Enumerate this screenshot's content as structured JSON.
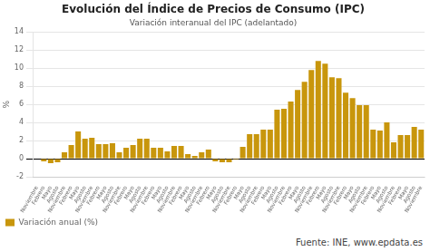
{
  "chart_data": {
    "type": "bar",
    "title": "Evolución del Índice de Precios de Consumo (IPC)",
    "subtitle": "Variación interanual del IPC (adelantado)",
    "y_label": "%",
    "annotations": [
      "Fuente: INE, www.epdata.es"
    ],
    "categories": [
      "Noviembre",
      "Febrero",
      "Mayo",
      "Agosto",
      "Noviembre",
      "Febrero",
      "Mayo",
      "Agosto",
      "Noviembre",
      "Febrero",
      "Mayo",
      "Agosto",
      "Noviembre",
      "Febrero",
      "Mayo",
      "Agosto",
      "Noviembre",
      "Febrero",
      "Mayo",
      "Agosto",
      "Noviembre",
      "Febrero",
      "Mayo",
      "Agosto",
      "Noviembre",
      "Febrero",
      "Mayo",
      "Agosto",
      "Noviembre",
      "Febrero",
      "Mayo",
      "Agosto",
      "Noviembre",
      "Febrero",
      "Mayo",
      "Agosto",
      "Noviembre",
      "Febrero",
      "Mayo",
      "Agosto",
      "Noviembre",
      "Febrero",
      "Mayo",
      "Agosto",
      "Noviembre",
      "Febrero",
      "Mayo",
      "Agosto",
      "Noviembre",
      "Febrero",
      "Mayo",
      "Agosto",
      "Noviembre",
      "Febrero",
      "Mayo",
      "Agosto",
      "Noviembre"
    ],
    "series": [
      {
        "name": "Variación anual (%)",
        "color": "#C8960C",
        "values": [
          0.0,
          -0.3,
          -0.5,
          -0.4,
          0.7,
          1.5,
          3.0,
          2.2,
          2.3,
          1.6,
          1.6,
          1.7,
          0.7,
          1.2,
          1.5,
          2.2,
          2.2,
          1.2,
          1.2,
          0.8,
          1.4,
          1.4,
          0.5,
          0.3,
          0.7,
          1.0,
          -0.3,
          -0.4,
          -0.4,
          -0.1,
          1.3,
          2.7,
          2.7,
          3.2,
          3.2,
          5.4,
          5.5,
          6.3,
          7.6,
          8.5,
          9.8,
          10.8,
          10.5,
          9.0,
          8.9,
          7.3,
          6.7,
          5.9,
          5.9,
          3.2,
          3.1,
          4.0,
          1.8,
          2.6,
          2.6,
          3.5,
          3.2
        ]
      }
    ],
    "ylim": [
      -2,
      14
    ],
    "yticks": [
      -2,
      0,
      2,
      4,
      6,
      8,
      10,
      12,
      14
    ],
    "grid": true,
    "legend": "bottom"
  }
}
